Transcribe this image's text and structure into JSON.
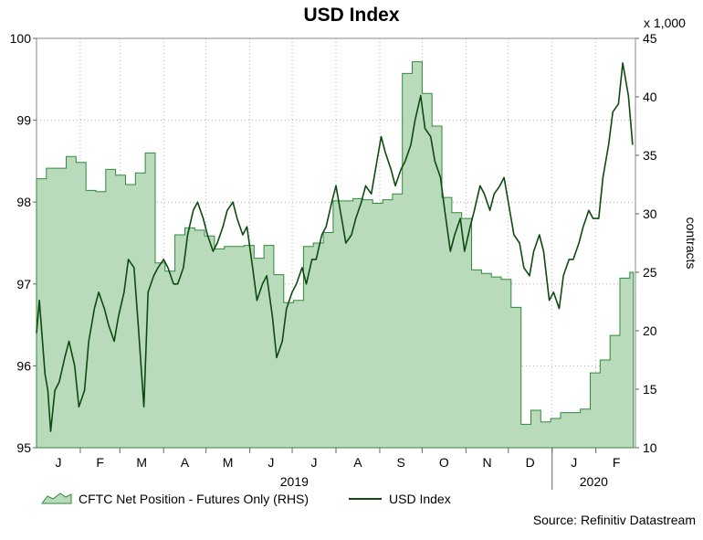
{
  "chart_data": {
    "type": "line",
    "title": "USD Index",
    "x_axis": {
      "month_ticks": [
        "J",
        "F",
        "M",
        "A",
        "M",
        "J",
        "J",
        "A",
        "S",
        "O",
        "N",
        "D",
        "J",
        "F"
      ],
      "year_labels": [
        "2019",
        "2020"
      ],
      "range": [
        "2019-01-01",
        "2020-02-29"
      ]
    },
    "y_left": {
      "range": [
        95,
        100
      ],
      "ticks": [
        "95",
        "96",
        "97",
        "98",
        "99",
        "100"
      ]
    },
    "y_right": {
      "range": [
        10,
        45
      ],
      "ticks": [
        "10",
        "15",
        "20",
        "25",
        "30",
        "35",
        "40",
        "45"
      ],
      "label": "contracts",
      "multiplier_label": "x 1,000"
    },
    "grid": true,
    "legend_position": "bottom-left",
    "series": [
      {
        "name": "CFTC Net Position - Futures Only (RHS)",
        "type": "area",
        "axis": "right",
        "color": "#2e8b3a",
        "fill": "#b9dbbb",
        "points": [
          [
            "2019-01-01",
            33.0
          ],
          [
            "2019-01-08",
            33.9
          ],
          [
            "2019-01-15",
            33.9
          ],
          [
            "2019-01-22",
            34.9
          ],
          [
            "2019-01-29",
            34.4
          ],
          [
            "2019-02-05",
            32.0
          ],
          [
            "2019-02-12",
            31.9
          ],
          [
            "2019-02-19",
            33.8
          ],
          [
            "2019-02-26",
            33.3
          ],
          [
            "2019-03-05",
            32.5
          ],
          [
            "2019-03-12",
            33.5
          ],
          [
            "2019-03-19",
            35.2
          ],
          [
            "2019-03-26",
            25.8
          ],
          [
            "2019-04-02",
            25.1
          ],
          [
            "2019-04-09",
            28.2
          ],
          [
            "2019-04-16",
            28.8
          ],
          [
            "2019-04-23",
            28.6
          ],
          [
            "2019-04-30",
            28.1
          ],
          [
            "2019-05-07",
            27.0
          ],
          [
            "2019-05-14",
            27.2
          ],
          [
            "2019-05-21",
            27.2
          ],
          [
            "2019-05-28",
            27.3
          ],
          [
            "2019-06-04",
            26.2
          ],
          [
            "2019-06-11",
            27.3
          ],
          [
            "2019-06-18",
            24.8
          ],
          [
            "2019-06-25",
            22.4
          ],
          [
            "2019-07-02",
            22.6
          ],
          [
            "2019-07-09",
            27.2
          ],
          [
            "2019-07-16",
            27.5
          ],
          [
            "2019-07-23",
            28.4
          ],
          [
            "2019-07-30",
            31.1
          ],
          [
            "2019-08-06",
            31.1
          ],
          [
            "2019-08-13",
            31.3
          ],
          [
            "2019-08-20",
            31.2
          ],
          [
            "2019-08-27",
            30.9
          ],
          [
            "2019-09-03",
            31.2
          ],
          [
            "2019-09-10",
            31.7
          ],
          [
            "2019-09-17",
            42.0
          ],
          [
            "2019-09-24",
            43.0
          ],
          [
            "2019-10-01",
            40.3
          ],
          [
            "2019-10-08",
            37.5
          ],
          [
            "2019-10-15",
            31.4
          ],
          [
            "2019-10-22",
            30.1
          ],
          [
            "2019-10-29",
            29.6
          ],
          [
            "2019-11-05",
            25.2
          ],
          [
            "2019-11-12",
            24.9
          ],
          [
            "2019-11-19",
            24.6
          ],
          [
            "2019-11-26",
            24.4
          ],
          [
            "2019-12-03",
            22.0
          ],
          [
            "2019-12-10",
            12.0
          ],
          [
            "2019-12-17",
            13.2
          ],
          [
            "2019-12-24",
            12.2
          ],
          [
            "2019-12-31",
            12.5
          ],
          [
            "2020-01-07",
            13.0
          ],
          [
            "2020-01-14",
            13.0
          ],
          [
            "2020-01-21",
            13.3
          ],
          [
            "2020-01-28",
            16.4
          ],
          [
            "2020-02-04",
            17.5
          ],
          [
            "2020-02-11",
            19.6
          ],
          [
            "2020-02-18",
            24.5
          ],
          [
            "2020-02-25",
            25.0
          ]
        ]
      },
      {
        "name": "USD Index",
        "type": "line",
        "axis": "left",
        "color": "#0d4a10",
        "points": [
          [
            "2019-01-01",
            96.4
          ],
          [
            "2019-01-03",
            96.8
          ],
          [
            "2019-01-07",
            95.9
          ],
          [
            "2019-01-09",
            95.7
          ],
          [
            "2019-01-11",
            95.2
          ],
          [
            "2019-01-14",
            95.7
          ],
          [
            "2019-01-17",
            95.8
          ],
          [
            "2019-01-21",
            96.1
          ],
          [
            "2019-01-24",
            96.3
          ],
          [
            "2019-01-28",
            96.0
          ],
          [
            "2019-01-31",
            95.5
          ],
          [
            "2019-02-04",
            95.7
          ],
          [
            "2019-02-07",
            96.3
          ],
          [
            "2019-02-11",
            96.7
          ],
          [
            "2019-02-14",
            96.9
          ],
          [
            "2019-02-18",
            96.7
          ],
          [
            "2019-02-21",
            96.5
          ],
          [
            "2019-02-25",
            96.3
          ],
          [
            "2019-02-28",
            96.6
          ],
          [
            "2019-03-04",
            96.9
          ],
          [
            "2019-03-07",
            97.3
          ],
          [
            "2019-03-11",
            97.2
          ],
          [
            "2019-03-14",
            96.5
          ],
          [
            "2019-03-18",
            95.5
          ],
          [
            "2019-03-21",
            96.9
          ],
          [
            "2019-03-25",
            97.1
          ],
          [
            "2019-03-28",
            97.2
          ],
          [
            "2019-04-01",
            97.3
          ],
          [
            "2019-04-04",
            97.2
          ],
          [
            "2019-04-08",
            97.0
          ],
          [
            "2019-04-11",
            97.0
          ],
          [
            "2019-04-15",
            97.2
          ],
          [
            "2019-04-18",
            97.6
          ],
          [
            "2019-04-22",
            97.9
          ],
          [
            "2019-04-25",
            98.0
          ],
          [
            "2019-04-29",
            97.8
          ],
          [
            "2019-05-02",
            97.6
          ],
          [
            "2019-05-06",
            97.4
          ],
          [
            "2019-05-09",
            97.5
          ],
          [
            "2019-05-13",
            97.7
          ],
          [
            "2019-05-16",
            97.9
          ],
          [
            "2019-05-20",
            98.0
          ],
          [
            "2019-05-23",
            97.8
          ],
          [
            "2019-05-27",
            97.6
          ],
          [
            "2019-05-30",
            97.7
          ],
          [
            "2019-06-03",
            97.2
          ],
          [
            "2019-06-06",
            96.8
          ],
          [
            "2019-06-10",
            97.0
          ],
          [
            "2019-06-13",
            97.1
          ],
          [
            "2019-06-17",
            96.6
          ],
          [
            "2019-06-20",
            96.1
          ],
          [
            "2019-06-24",
            96.3
          ],
          [
            "2019-06-27",
            96.7
          ],
          [
            "2019-07-01",
            96.9
          ],
          [
            "2019-07-04",
            97.0
          ],
          [
            "2019-07-08",
            97.2
          ],
          [
            "2019-07-11",
            97.0
          ],
          [
            "2019-07-15",
            97.3
          ],
          [
            "2019-07-18",
            97.3
          ],
          [
            "2019-07-22",
            97.6
          ],
          [
            "2019-07-25",
            97.7
          ],
          [
            "2019-07-29",
            98.0
          ],
          [
            "2019-08-01",
            98.2
          ],
          [
            "2019-08-05",
            97.8
          ],
          [
            "2019-08-08",
            97.5
          ],
          [
            "2019-08-12",
            97.6
          ],
          [
            "2019-08-15",
            97.8
          ],
          [
            "2019-08-19",
            98.0
          ],
          [
            "2019-08-22",
            98.2
          ],
          [
            "2019-08-26",
            98.1
          ],
          [
            "2019-08-29",
            98.4
          ],
          [
            "2019-09-02",
            98.8
          ],
          [
            "2019-09-05",
            98.6
          ],
          [
            "2019-09-09",
            98.4
          ],
          [
            "2019-09-12",
            98.2
          ],
          [
            "2019-09-16",
            98.4
          ],
          [
            "2019-09-19",
            98.5
          ],
          [
            "2019-09-23",
            98.7
          ],
          [
            "2019-09-26",
            99.0
          ],
          [
            "2019-09-30",
            99.3
          ],
          [
            "2019-10-03",
            98.9
          ],
          [
            "2019-10-07",
            98.8
          ],
          [
            "2019-10-10",
            98.5
          ],
          [
            "2019-10-14",
            98.3
          ],
          [
            "2019-10-17",
            97.9
          ],
          [
            "2019-10-21",
            97.4
          ],
          [
            "2019-10-24",
            97.6
          ],
          [
            "2019-10-28",
            97.8
          ],
          [
            "2019-10-31",
            97.4
          ],
          [
            "2019-11-04",
            97.7
          ],
          [
            "2019-11-07",
            97.9
          ],
          [
            "2019-11-11",
            98.2
          ],
          [
            "2019-11-14",
            98.1
          ],
          [
            "2019-11-18",
            97.9
          ],
          [
            "2019-11-21",
            98.1
          ],
          [
            "2019-11-25",
            98.2
          ],
          [
            "2019-11-28",
            98.3
          ],
          [
            "2019-12-02",
            97.9
          ],
          [
            "2019-12-05",
            97.6
          ],
          [
            "2019-12-09",
            97.5
          ],
          [
            "2019-12-12",
            97.2
          ],
          [
            "2019-12-16",
            97.1
          ],
          [
            "2019-12-19",
            97.4
          ],
          [
            "2019-12-23",
            97.6
          ],
          [
            "2019-12-26",
            97.4
          ],
          [
            "2019-12-30",
            96.8
          ],
          [
            "2020-01-02",
            96.9
          ],
          [
            "2020-01-06",
            96.7
          ],
          [
            "2020-01-09",
            97.1
          ],
          [
            "2020-01-13",
            97.3
          ],
          [
            "2020-01-16",
            97.3
          ],
          [
            "2020-01-20",
            97.5
          ],
          [
            "2020-01-23",
            97.7
          ],
          [
            "2020-01-27",
            97.9
          ],
          [
            "2020-01-30",
            97.8
          ],
          [
            "2020-02-03",
            97.8
          ],
          [
            "2020-02-06",
            98.3
          ],
          [
            "2020-02-10",
            98.7
          ],
          [
            "2020-02-13",
            99.1
          ],
          [
            "2020-02-17",
            99.2
          ],
          [
            "2020-02-20",
            99.7
          ],
          [
            "2020-02-24",
            99.3
          ],
          [
            "2020-02-27",
            98.7
          ]
        ]
      }
    ]
  },
  "legend": {
    "area_label": "CFTC Net Position - Futures Only (RHS)",
    "line_label": "USD Index"
  },
  "source": "Source: Refinitiv Datastream"
}
